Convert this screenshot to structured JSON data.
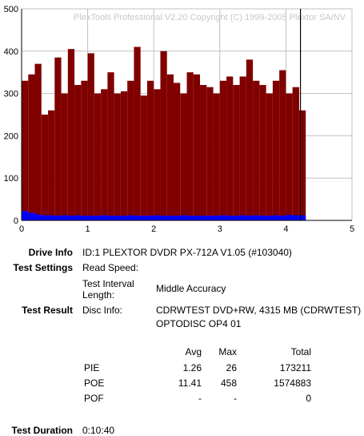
{
  "colors": {
    "pie": "#0000ff",
    "poe": "#800000",
    "grid": "#c0c0c0",
    "marker": "#000000",
    "watermark": "#c8c8c8"
  },
  "chart_data": {
    "type": "bar",
    "title": "",
    "watermark": "PlexTools Professional V2.20 Copyright (C) 1999-2005 Plextor SA/NV",
    "xlabel": "",
    "ylabel": "",
    "xlim": [
      0,
      5
    ],
    "ylim": [
      0,
      500
    ],
    "xticks": [
      "0",
      "1",
      "2",
      "3",
      "4",
      "5"
    ],
    "yticks": [
      "0",
      "100",
      "200",
      "300",
      "400",
      "500"
    ],
    "grid": true,
    "end_marker_x": 4.22,
    "series": [
      {
        "color": "#800000",
        "x": [
          0.0,
          0.1,
          0.2,
          0.3,
          0.4,
          0.5,
          0.6,
          0.7,
          0.8,
          0.9,
          1.0,
          1.1,
          1.2,
          1.3,
          1.4,
          1.5,
          1.6,
          1.7,
          1.8,
          1.9,
          2.0,
          2.1,
          2.2,
          2.3,
          2.4,
          2.5,
          2.6,
          2.7,
          2.8,
          2.9,
          3.0,
          3.1,
          3.2,
          3.3,
          3.4,
          3.5,
          3.6,
          3.7,
          3.8,
          3.9,
          4.0,
          4.1,
          4.2
        ],
        "values": [
          330,
          345,
          370,
          250,
          260,
          385,
          300,
          405,
          320,
          330,
          395,
          300,
          310,
          350,
          300,
          305,
          330,
          410,
          295,
          330,
          310,
          400,
          345,
          325,
          300,
          350,
          345,
          320,
          315,
          300,
          330,
          340,
          320,
          340,
          380,
          330,
          320,
          300,
          330,
          355,
          300,
          315,
          260
        ]
      },
      {
        "color": "#0000ff",
        "x": [
          0.0,
          0.1,
          0.2,
          0.3,
          0.4,
          0.5,
          0.6,
          0.7,
          0.8,
          0.9,
          1.0,
          1.1,
          1.2,
          1.3,
          1.4,
          1.5,
          1.6,
          1.7,
          1.8,
          1.9,
          2.0,
          2.1,
          2.2,
          2.3,
          2.4,
          2.5,
          2.6,
          2.7,
          2.8,
          2.9,
          3.0,
          3.1,
          3.2,
          3.3,
          3.4,
          3.5,
          3.6,
          3.7,
          3.8,
          3.9,
          4.0,
          4.1,
          4.2
        ],
        "values": [
          22,
          18,
          14,
          12,
          12,
          11,
          12,
          11,
          12,
          11,
          11,
          11,
          12,
          11,
          11,
          11,
          12,
          11,
          11,
          11,
          12,
          11,
          11,
          11,
          12,
          11,
          11,
          11,
          11,
          11,
          12,
          11,
          11,
          12,
          11,
          12,
          11,
          11,
          12,
          11,
          13,
          12,
          12
        ]
      }
    ]
  },
  "info": {
    "drive_info_label": "Drive Info",
    "drive_info_value": "ID:1 PLEXTOR DVDR PX-712A V1.05 (#103040)",
    "test_settings_label": "Test Settings",
    "read_speed_label": "Read Speed:",
    "interval_label_1": "Test Interval",
    "interval_label_2": "Length:",
    "interval_value": "Middle Accuracy",
    "test_result_label": "Test Result",
    "disc_info_label": "Disc Info:",
    "disc_info_value_1": "CDRWTEST DVD+RW, 4315 MB (CDRWTEST)",
    "disc_info_value_2": "OPTODISC OP4 01",
    "test_duration_label": "Test Duration",
    "test_duration_value": "0:10:40"
  },
  "results_table": {
    "headers": [
      "Avg",
      "Max",
      "Total"
    ],
    "rows": [
      {
        "name": "PIE",
        "avg": "1.26",
        "max": "26",
        "total": "173211"
      },
      {
        "name": "POE",
        "avg": "11.41",
        "max": "458",
        "total": "1574883"
      },
      {
        "name": "POF",
        "avg": "-",
        "max": "-",
        "total": "0"
      }
    ]
  }
}
